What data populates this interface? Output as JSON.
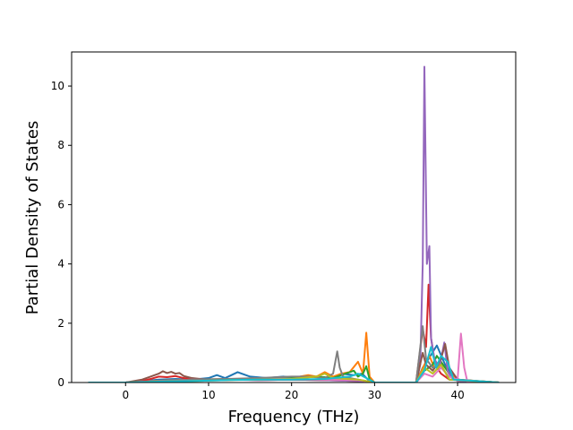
{
  "chart_data": {
    "type": "line",
    "title": "",
    "xlabel": "Frequency (THz)",
    "ylabel": "Partial Density of States",
    "xlim": [
      -6.5,
      47
    ],
    "ylim": [
      0,
      11.15
    ],
    "xticks": [
      0,
      10,
      20,
      30,
      40
    ],
    "yticks": [
      0,
      2,
      4,
      6,
      8,
      10
    ],
    "grid": false,
    "legend": "none",
    "series": [
      {
        "color": "#1f77b4",
        "x": [
          -4.5,
          0,
          2,
          4,
          6,
          8,
          10,
          11,
          12,
          13.5,
          15,
          17,
          19,
          21,
          23,
          25,
          26,
          27.5,
          28.5,
          29.2,
          30,
          35,
          35.8,
          36.5,
          37.5,
          38.5,
          39.5,
          40.5,
          45
        ],
        "y": [
          0,
          0,
          0.05,
          0.1,
          0.12,
          0.1,
          0.15,
          0.25,
          0.15,
          0.35,
          0.2,
          0.15,
          0.2,
          0.15,
          0.2,
          0.15,
          0.3,
          0.25,
          0.3,
          0.1,
          0,
          0,
          0.5,
          0.8,
          1.25,
          0.6,
          0.2,
          0.05,
          0
        ]
      },
      {
        "color": "#ff7f0e",
        "x": [
          -4.5,
          0,
          3,
          6,
          9,
          12,
          15,
          18,
          21,
          22,
          23,
          24,
          25,
          26,
          27,
          28,
          28.6,
          29,
          29.4,
          30,
          35,
          36,
          36.6,
          37.2,
          38,
          39,
          40,
          45
        ],
        "y": [
          0,
          0,
          0.05,
          0.08,
          0.1,
          0.12,
          0.1,
          0.15,
          0.2,
          0.25,
          0.2,
          0.35,
          0.2,
          0.3,
          0.35,
          0.7,
          0.3,
          1.68,
          0.2,
          0,
          0,
          0.6,
          0.9,
          0.5,
          0.7,
          0.3,
          0.1,
          0
        ]
      },
      {
        "color": "#2ca02c",
        "x": [
          -4.5,
          0,
          4,
          8,
          12,
          16,
          20,
          23,
          25,
          26,
          27,
          27.5,
          28,
          28.6,
          29,
          29.4,
          30,
          35,
          36,
          37,
          37.5,
          38.5,
          39.5,
          45
        ],
        "y": [
          0,
          0,
          0.05,
          0.08,
          0.1,
          0.12,
          0.15,
          0.2,
          0.15,
          0.25,
          0.35,
          0.4,
          0.2,
          0.3,
          0.55,
          0.1,
          0,
          0,
          0.4,
          0.6,
          0.9,
          0.5,
          0.1,
          0
        ]
      },
      {
        "color": "#d62728",
        "x": [
          -4.5,
          0,
          2,
          3,
          4,
          5,
          6,
          7,
          8,
          10,
          12,
          14,
          16,
          20,
          24,
          28,
          30,
          35,
          35.8,
          36.2,
          36.5,
          36.8,
          37.3,
          38,
          39,
          45
        ],
        "y": [
          0,
          0,
          0.05,
          0.12,
          0.2,
          0.18,
          0.22,
          0.15,
          0.12,
          0.1,
          0.08,
          0.1,
          0.08,
          0.1,
          0.08,
          0.05,
          0,
          0,
          1.8,
          1.2,
          3.3,
          1.5,
          0.6,
          0.3,
          0.1,
          0
        ]
      },
      {
        "color": "#9467bd",
        "x": [
          -4.5,
          0,
          4,
          8,
          12,
          16,
          20,
          24,
          28,
          30,
          35,
          35.5,
          35.8,
          36.0,
          36.3,
          36.6,
          36.8,
          37.2,
          37.8,
          38.4,
          38.8,
          39.2,
          40,
          45
        ],
        "y": [
          0,
          0,
          0.05,
          0.08,
          0.1,
          0.08,
          0.1,
          0.08,
          0.05,
          0,
          0,
          0.6,
          4.0,
          10.65,
          4.0,
          4.6,
          1.5,
          0.8,
          0.5,
          1.35,
          0.4,
          0.2,
          0.05,
          0
        ]
      },
      {
        "color": "#8c564b",
        "x": [
          -4.5,
          0,
          2,
          3,
          4,
          4.5,
          5,
          5.5,
          6,
          6.5,
          7,
          8,
          9,
          10,
          12,
          14,
          16,
          20,
          24,
          28,
          30,
          35,
          35.8,
          36.2,
          37,
          38,
          38.5,
          39,
          40,
          45
        ],
        "y": [
          0,
          0,
          0.1,
          0.2,
          0.3,
          0.38,
          0.32,
          0.36,
          0.3,
          0.32,
          0.22,
          0.15,
          0.12,
          0.1,
          0.1,
          0.12,
          0.1,
          0.1,
          0.1,
          0.08,
          0,
          0,
          1.0,
          0.6,
          0.4,
          0.8,
          1.3,
          0.5,
          0.1,
          0
        ]
      },
      {
        "color": "#e377c2",
        "x": [
          -4.5,
          0,
          4,
          8,
          12,
          16,
          20,
          24,
          28,
          30,
          35,
          36,
          37,
          38,
          39,
          40,
          40.4,
          40.8,
          41.2,
          45
        ],
        "y": [
          0,
          0,
          0.05,
          0.1,
          0.1,
          0.15,
          0.12,
          0.1,
          0.08,
          0,
          0,
          0.3,
          0.2,
          0.5,
          0.2,
          0.1,
          1.65,
          0.5,
          0,
          0
        ]
      },
      {
        "color": "#7f7f7f",
        "x": [
          -4.5,
          0,
          4,
          8,
          12,
          16,
          20,
          22,
          24,
          25,
          25.5,
          25.8,
          26.2,
          27,
          28,
          30,
          35,
          35.8,
          36.2,
          37,
          38,
          39,
          45
        ],
        "y": [
          0,
          0,
          0.05,
          0.1,
          0.12,
          0.15,
          0.2,
          0.2,
          0.15,
          0.3,
          1.05,
          0.5,
          0.2,
          0.15,
          0.1,
          0,
          0,
          1.9,
          0.8,
          0.5,
          0.6,
          0.1,
          0
        ]
      },
      {
        "color": "#bcbd22",
        "x": [
          -4.5,
          0,
          4,
          8,
          12,
          16,
          20,
          23,
          24,
          25,
          28,
          30,
          35,
          36,
          37,
          38,
          39,
          45
        ],
        "y": [
          0,
          0,
          0.03,
          0.05,
          0.08,
          0.1,
          0.12,
          0.2,
          0.3,
          0.15,
          0.1,
          0,
          0,
          0.5,
          0.3,
          0.6,
          0.1,
          0
        ]
      },
      {
        "color": "#17becf",
        "x": [
          -4.5,
          0,
          4,
          8,
          12,
          16,
          20,
          24,
          27,
          28,
          29,
          30,
          35,
          36,
          36.8,
          37.4,
          38,
          38.8,
          39.5,
          45
        ],
        "y": [
          0,
          0,
          0.03,
          0.05,
          0.08,
          0.1,
          0.1,
          0.12,
          0.2,
          0.3,
          0.15,
          0,
          0,
          0.4,
          1.2,
          0.5,
          0.9,
          0.7,
          0.1,
          0
        ]
      }
    ]
  }
}
